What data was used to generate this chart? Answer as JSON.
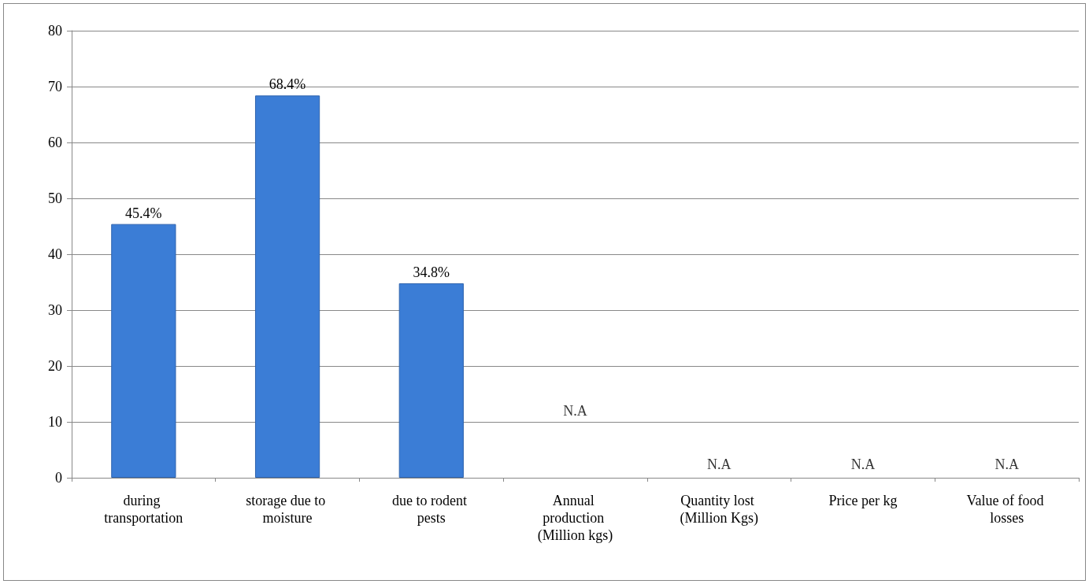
{
  "chart_data": {
    "type": "bar",
    "categories": [
      "during transportation",
      "storage due to moisture",
      "due to rodent pests",
      "Annual production (Million kgs)",
      "Quantity lost (Million Kgs)",
      "Price per kg",
      "Value of food losses"
    ],
    "values": [
      45.4,
      68.4,
      34.8,
      null,
      null,
      null,
      null
    ],
    "value_labels": [
      "45.4%",
      "68.4%",
      "34.8%",
      null,
      null,
      null,
      null
    ],
    "color": "#3b7dd6",
    "annotations": [
      "N.A",
      "N.A",
      "N.A",
      "N.A"
    ],
    "ylim": [
      0,
      80
    ],
    "yticks": [
      0,
      10,
      20,
      30,
      40,
      50,
      60,
      70,
      80
    ],
    "grid": "y"
  }
}
